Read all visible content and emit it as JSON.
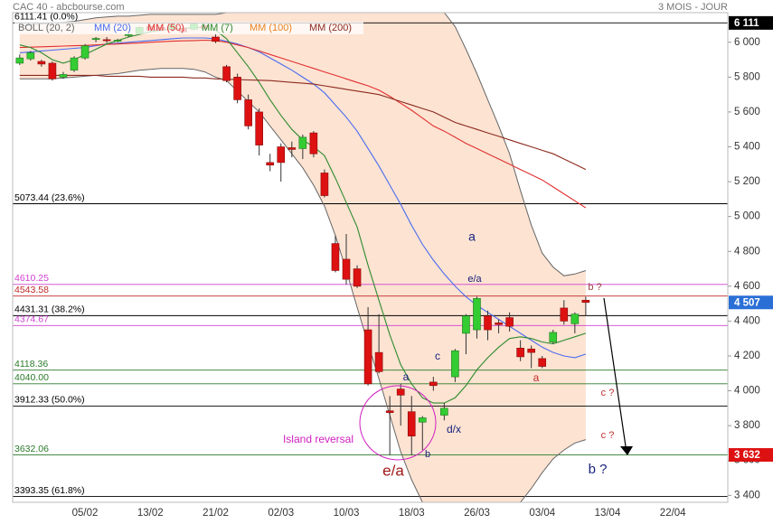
{
  "chart_data": {
    "type": "candlestick",
    "title": "CAC 40 - abcbourse.com",
    "period": "3 MOIS - JOUR",
    "categories": [
      null,
      null,
      null,
      null,
      null,
      null,
      "05/02",
      null,
      null,
      null,
      null,
      null,
      "13/02",
      null,
      null,
      null,
      null,
      null,
      "21/02",
      null,
      null,
      null,
      null,
      null,
      "02/03",
      null,
      null,
      null,
      null,
      null,
      "10/03",
      null,
      null,
      null,
      null,
      null,
      "18/03",
      null,
      null,
      null,
      null,
      null,
      "26/03",
      null,
      null,
      null,
      null,
      null,
      "03/04",
      null,
      null,
      null,
      null,
      null,
      "13/04",
      null,
      null,
      null,
      null,
      null,
      "22/04"
    ],
    "open": [
      5880,
      5905,
      5890,
      5880,
      5800,
      5840,
      5910,
      6020,
      6015,
      6010,
      6040,
      6050,
      6090,
      6085,
      6075,
      6080,
      6075,
      6095,
      6030,
      5860,
      5800,
      5670,
      5600,
      5310,
      5400,
      5395,
      5390,
      5480,
      5250,
      4845,
      4755,
      4700,
      4350,
      4220,
      3885,
      4010,
      3880,
      3820,
      4050,
      3860,
      4080,
      4330,
      4350,
      4430,
      4390,
      4420,
      4245,
      4240,
      4185,
      4280,
      4475,
      4385,
      4520,
      null,
      null,
      null,
      null,
      null,
      null,
      null,
      null
    ],
    "high": [
      5930,
      5950,
      5900,
      5890,
      5830,
      5920,
      5990,
      6030,
      6030,
      6020,
      6055,
      6090,
      6100,
      6095,
      6110,
      6095,
      6111,
      6105,
      6045,
      5870,
      5820,
      5700,
      5620,
      5360,
      5420,
      5430,
      5470,
      5490,
      5270,
      4890,
      4900,
      4720,
      4480,
      4440,
      3970,
      4040,
      3970,
      3855,
      4080,
      3930,
      4240,
      4440,
      4540,
      4460,
      4410,
      4450,
      4290,
      4260,
      4200,
      4350,
      4520,
      4450,
      4540,
      null,
      null,
      null,
      null,
      null,
      null,
      null,
      null
    ],
    "low": [
      5870,
      5895,
      5860,
      5780,
      5790,
      5830,
      5900,
      6000,
      5995,
      6000,
      6030,
      6045,
      6060,
      6065,
      6060,
      6055,
      6070,
      6070,
      5995,
      5770,
      5650,
      5500,
      5350,
      5260,
      5200,
      5340,
      5330,
      5340,
      5110,
      4680,
      4610,
      4590,
      4030,
      4100,
      3630,
      3800,
      3630,
      3660,
      4000,
      3830,
      4050,
      4210,
      4300,
      4290,
      4330,
      4340,
      4170,
      4130,
      4130,
      4270,
      4380,
      4330,
      4430,
      null,
      null,
      null,
      null,
      null,
      null,
      null,
      null
    ],
    "close": [
      5910,
      5940,
      5875,
      5790,
      5815,
      5910,
      5980,
      6022,
      6012,
      6012,
      6045,
      6085,
      6070,
      6070,
      6100,
      6060,
      6105,
      6080,
      6005,
      5780,
      5670,
      5520,
      5410,
      5295,
      5310,
      5385,
      5455,
      5360,
      5120,
      4690,
      4640,
      4600,
      4040,
      4110,
      3875,
      3975,
      3740,
      3845,
      4030,
      3900,
      4230,
      4430,
      4530,
      4350,
      4380,
      4370,
      4195,
      4220,
      4140,
      4335,
      4400,
      4440,
      4507,
      null,
      null,
      null,
      null,
      null,
      null,
      null,
      null
    ],
    "up_color": "#33cc33",
    "down_color": "#dd1111",
    "indicators": [
      {
        "name": "BOLL (20, 2)",
        "color": "#666666",
        "fill": "#fde3d2",
        "upper": [
          6090,
          6100,
          6105,
          6110,
          6115,
          6120,
          6130,
          6140,
          6145,
          6150,
          6150,
          6155,
          6160,
          6160,
          6160,
          6160,
          6160,
          6160,
          6160,
          6170,
          6190,
          6220,
          6260,
          6290,
          6310,
          6320,
          6330,
          6340,
          6350,
          6360,
          6360,
          6360,
          6360,
          6350,
          6340,
          6320,
          6290,
          6240,
          6200,
          6170,
          6090,
          5960,
          5820,
          5670,
          5520,
          5360,
          5150,
          4950,
          4790,
          4710,
          4660,
          4670,
          4690,
          null,
          null,
          null,
          null,
          null,
          null,
          null,
          null
        ],
        "lower": [
          5790,
          5790,
          5790,
          5790,
          5795,
          5800,
          5805,
          5810,
          5815,
          5820,
          5830,
          5840,
          5845,
          5850,
          5850,
          5850,
          5845,
          5830,
          5800,
          5780,
          5720,
          5660,
          5600,
          5520,
          5440,
          5360,
          5280,
          5180,
          5060,
          4890,
          4690,
          4480,
          4270,
          4070,
          3860,
          3650,
          3490,
          3360,
          3260,
          3180,
          3130,
          3130,
          3140,
          3170,
          3230,
          3300,
          3360,
          3440,
          3530,
          3610,
          3660,
          3700,
          3720,
          null,
          null,
          null,
          null,
          null,
          null,
          null,
          null
        ]
      },
      {
        "name": "MM (20)",
        "color": "#4a6cf0",
        "values": [
          5940,
          5945,
          5950,
          5955,
          5960,
          5965,
          5970,
          5980,
          5990,
          5995,
          6000,
          6005,
          6010,
          6015,
          6020,
          6025,
          6025,
          6025,
          6020,
          6005,
          5990,
          5970,
          5945,
          5910,
          5875,
          5840,
          5800,
          5760,
          5710,
          5640,
          5570,
          5490,
          5390,
          5290,
          5180,
          5070,
          4950,
          4840,
          4750,
          4670,
          4600,
          4540,
          4490,
          4450,
          4410,
          4370,
          4330,
          4290,
          4250,
          4220,
          4200,
          4190,
          4210,
          null,
          null,
          null,
          null,
          null,
          null,
          null,
          null
        ]
      },
      {
        "name": "MM (50)",
        "color": "#e03030",
        "values": [
          5970,
          5972,
          5974,
          5976,
          5978,
          5980,
          5982,
          5985,
          5988,
          5990,
          5993,
          5996,
          6000,
          6003,
          6006,
          6008,
          6010,
          6012,
          6010,
          6000,
          5985,
          5970,
          5950,
          5930,
          5910,
          5890,
          5870,
          5850,
          5830,
          5810,
          5790,
          5770,
          5750,
          5725,
          5690,
          5650,
          5610,
          5565,
          5520,
          5490,
          5455,
          5420,
          5390,
          5360,
          5330,
          5300,
          5270,
          5240,
          5210,
          5170,
          5130,
          5090,
          5050,
          null,
          null,
          null,
          null,
          null,
          null,
          null,
          null
        ]
      },
      {
        "name": "MM (7)",
        "color": "#2e8b2e",
        "values": [
          5985,
          5970,
          5940,
          5900,
          5880,
          5900,
          5930,
          5960,
          5990,
          6010,
          6030,
          6045,
          6060,
          6070,
          6075,
          6080,
          6085,
          6085,
          6070,
          6020,
          5940,
          5860,
          5770,
          5670,
          5580,
          5500,
          5440,
          5400,
          5350,
          5220,
          5080,
          4940,
          4720,
          4520,
          4320,
          4150,
          4040,
          3960,
          3930,
          3930,
          3960,
          4030,
          4120,
          4190,
          4250,
          4300,
          4310,
          4300,
          4280,
          4270,
          4290,
          4310,
          4330,
          null,
          null,
          null,
          null,
          null,
          null,
          null,
          null
        ]
      },
      {
        "name": "MM (100)",
        "color": "#e8821e"
      },
      {
        "name": "MM (200)",
        "color": "#8b2a1e",
        "values": [
          5810,
          5810,
          5810,
          5810,
          5810,
          5810,
          5810,
          5810,
          5805,
          5805,
          5805,
          5805,
          5800,
          5800,
          5800,
          5800,
          5795,
          5795,
          5790,
          5788,
          5786,
          5784,
          5782,
          5780,
          5775,
          5770,
          5765,
          5760,
          5750,
          5740,
          5730,
          5720,
          5710,
          5700,
          5680,
          5660,
          5640,
          5620,
          5600,
          5570,
          5540,
          5520,
          5500,
          5480,
          5460,
          5440,
          5420,
          5400,
          5380,
          5360,
          5330,
          5300,
          5270,
          null,
          null,
          null,
          null,
          null,
          null,
          null,
          null
        ]
      }
    ],
    "ylim": [
      3360,
      6170
    ],
    "yticks": [
      {
        "value": 3400,
        "label": "3 400"
      },
      {
        "value": 3600,
        "label": "3 600"
      },
      {
        "value": 3800,
        "label": "3 800"
      },
      {
        "value": 4000,
        "label": "4 000"
      },
      {
        "value": 4200,
        "label": "4 200"
      },
      {
        "value": 4400,
        "label": "4 400"
      },
      {
        "value": 4600,
        "label": "4 600"
      },
      {
        "value": 4800,
        "label": "4 800"
      },
      {
        "value": 5000,
        "label": "5 000"
      },
      {
        "value": 5200,
        "label": "5 200"
      },
      {
        "value": 5400,
        "label": "5 400"
      },
      {
        "value": 5600,
        "label": "5 600"
      },
      {
        "value": 5800,
        "label": "5 800"
      },
      {
        "value": 6000,
        "label": "6 000"
      }
    ],
    "levels": [
      {
        "value": 6111.41,
        "label": "6111.41 (0.0%)",
        "color": "#000000"
      },
      {
        "value": 5073.44,
        "label": "5073.44 (23.6%)",
        "color": "#000000"
      },
      {
        "value": 4610.25,
        "label": "4610.25",
        "color": "#d040d0"
      },
      {
        "value": 4543.58,
        "label": "4543.58",
        "color": "#c02828"
      },
      {
        "value": 4431.31,
        "label": "4431.31 (38.2%)",
        "color": "#000000"
      },
      {
        "value": 4374.67,
        "label": "4374.67",
        "color": "#d040d0"
      },
      {
        "value": 4118.36,
        "label": "4118.36",
        "color": "#2a7a2a"
      },
      {
        "value": 4040.0,
        "label": "4040.00",
        "color": "#2a7a2a"
      },
      {
        "value": 3912.33,
        "label": "3912.33 (50.0%)",
        "color": "#000000"
      },
      {
        "value": 3632.06,
        "label": "3632.06",
        "color": "#2a7a2a"
      },
      {
        "value": 3393.35,
        "label": "3393.35 (61.8%)",
        "color": "#000000"
      }
    ],
    "price_tags": [
      {
        "value": 6111,
        "label": "6 111",
        "color": "#000000"
      },
      {
        "value": 4507,
        "label": "4 507",
        "color": "#2a6fd6"
      },
      {
        "value": 3632,
        "label": "3 632",
        "color": "#dd1111"
      }
    ],
    "annotations": [
      "a",
      "e/a",
      "b ?",
      "a",
      "c",
      "d/x",
      "b",
      "e/a",
      "Island reversal",
      "a",
      "c ?",
      "c ?",
      "b ?"
    ]
  }
}
